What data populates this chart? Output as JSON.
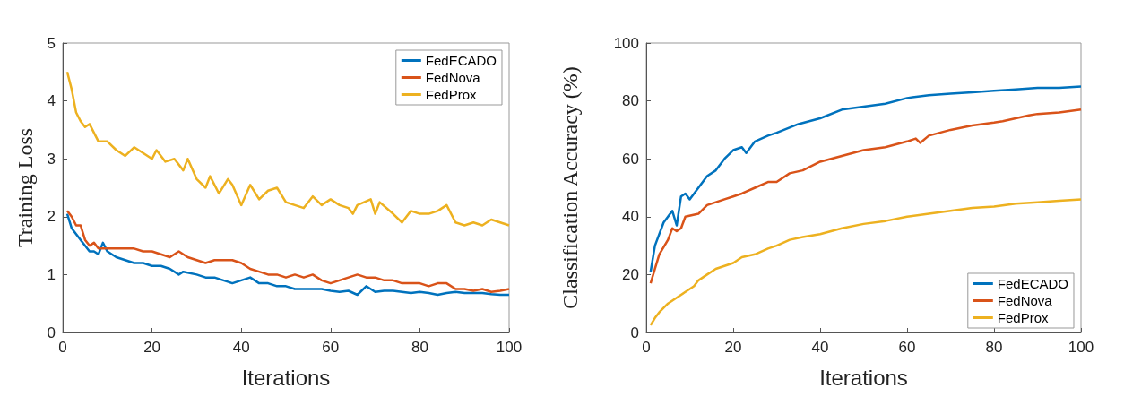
{
  "chart_data": [
    {
      "type": "line",
      "xlabel": "Iterations",
      "ylabel": "Training Loss",
      "xlim": [
        0,
        100
      ],
      "xticks": [
        0,
        20,
        40,
        60,
        80,
        100
      ],
      "ylim": [
        0,
        5
      ],
      "yticks": [
        0,
        1,
        2,
        3,
        4,
        5
      ],
      "grid": false,
      "legend": "top right",
      "marker": "none",
      "line_style": "solid",
      "series": [
        {
          "name": "FedECADO",
          "color": "#0072bd",
          "x": [
            1,
            2,
            4,
            6,
            7,
            8,
            9,
            10,
            12,
            14,
            16,
            18,
            20,
            22,
            24,
            26,
            27,
            30,
            32,
            34,
            36,
            38,
            40,
            42,
            44,
            46,
            48,
            50,
            52,
            54,
            56,
            58,
            60,
            62,
            64,
            66,
            68,
            70,
            72,
            74,
            76,
            78,
            80,
            82,
            84,
            86,
            88,
            90,
            92,
            94,
            96,
            98,
            100
          ],
          "values": [
            2.05,
            1.8,
            1.6,
            1.4,
            1.4,
            1.35,
            1.55,
            1.4,
            1.3,
            1.25,
            1.2,
            1.2,
            1.15,
            1.15,
            1.1,
            1.0,
            1.05,
            1.0,
            0.95,
            0.95,
            0.9,
            0.85,
            0.9,
            0.95,
            0.85,
            0.85,
            0.8,
            0.8,
            0.75,
            0.75,
            0.75,
            0.75,
            0.72,
            0.7,
            0.72,
            0.65,
            0.8,
            0.7,
            0.72,
            0.72,
            0.7,
            0.68,
            0.7,
            0.68,
            0.65,
            0.68,
            0.7,
            0.68,
            0.68,
            0.68,
            0.66,
            0.65,
            0.65
          ]
        },
        {
          "name": "FedNova",
          "color": "#d95319",
          "x": [
            1,
            2,
            3,
            4,
            5,
            6,
            7,
            8,
            10,
            12,
            14,
            16,
            18,
            20,
            22,
            24,
            26,
            28,
            30,
            32,
            34,
            36,
            38,
            40,
            42,
            44,
            46,
            48,
            50,
            52,
            54,
            56,
            58,
            60,
            62,
            64,
            66,
            68,
            70,
            72,
            74,
            76,
            78,
            80,
            82,
            84,
            86,
            88,
            90,
            92,
            94,
            96,
            98,
            100
          ],
          "values": [
            2.1,
            2.0,
            1.85,
            1.85,
            1.6,
            1.5,
            1.55,
            1.45,
            1.45,
            1.45,
            1.45,
            1.45,
            1.4,
            1.4,
            1.35,
            1.3,
            1.4,
            1.3,
            1.25,
            1.2,
            1.25,
            1.25,
            1.25,
            1.2,
            1.1,
            1.05,
            1.0,
            1.0,
            0.95,
            1.0,
            0.95,
            1.0,
            0.9,
            0.85,
            0.9,
            0.95,
            1.0,
            0.95,
            0.95,
            0.9,
            0.9,
            0.85,
            0.85,
            0.85,
            0.8,
            0.85,
            0.85,
            0.75,
            0.75,
            0.72,
            0.75,
            0.7,
            0.72,
            0.75
          ]
        },
        {
          "name": "FedProx",
          "color": "#edb120",
          "x": [
            1,
            2,
            3,
            4,
            5,
            6,
            7,
            8,
            10,
            12,
            14,
            16,
            18,
            20,
            21,
            23,
            25,
            27,
            28,
            30,
            32,
            33,
            35,
            37,
            38,
            40,
            42,
            44,
            46,
            48,
            50,
            52,
            54,
            56,
            58,
            60,
            62,
            64,
            65,
            66,
            69,
            70,
            71,
            74,
            76,
            78,
            80,
            82,
            84,
            86,
            88,
            90,
            92,
            94,
            96,
            98,
            100
          ],
          "values": [
            4.5,
            4.2,
            3.8,
            3.65,
            3.55,
            3.6,
            3.45,
            3.3,
            3.3,
            3.15,
            3.05,
            3.2,
            3.1,
            3.0,
            3.15,
            2.95,
            3.0,
            2.8,
            3.0,
            2.65,
            2.5,
            2.7,
            2.4,
            2.65,
            2.55,
            2.2,
            2.55,
            2.3,
            2.45,
            2.5,
            2.25,
            2.2,
            2.15,
            2.35,
            2.2,
            2.3,
            2.2,
            2.15,
            2.05,
            2.2,
            2.3,
            2.05,
            2.25,
            2.05,
            1.9,
            2.1,
            2.05,
            2.05,
            2.1,
            2.2,
            1.9,
            1.85,
            1.9,
            1.85,
            1.95,
            1.9,
            1.85
          ]
        }
      ]
    },
    {
      "type": "line",
      "xlabel": "Iterations",
      "ylabel": "Classification Accuracy (%)",
      "xlim": [
        0,
        100
      ],
      "xticks": [
        0,
        20,
        40,
        60,
        80,
        100
      ],
      "ylim": [
        0,
        100
      ],
      "yticks": [
        0,
        20,
        40,
        60,
        80,
        100
      ],
      "grid": false,
      "legend": "bottom right",
      "marker": "none",
      "line_style": "solid",
      "series": [
        {
          "name": "FedECADO",
          "color": "#0072bd",
          "x": [
            1,
            2,
            3,
            4,
            5,
            6,
            7,
            8,
            9,
            10,
            12,
            14,
            16,
            18,
            20,
            22,
            23,
            25,
            28,
            30,
            35,
            40,
            45,
            50,
            55,
            60,
            65,
            70,
            75,
            80,
            85,
            90,
            95,
            100
          ],
          "values": [
            21,
            30,
            34,
            38,
            40,
            42,
            37,
            47,
            48,
            46,
            50,
            54,
            56,
            60,
            63,
            64,
            62,
            66,
            68,
            69,
            72,
            74,
            77,
            78,
            79,
            81,
            82,
            82.5,
            83,
            83.5,
            84,
            84.5,
            84.5,
            85
          ]
        },
        {
          "name": "FedNova",
          "color": "#d95319",
          "x": [
            1,
            2,
            3,
            5,
            6,
            7,
            8,
            9,
            12,
            14,
            16,
            18,
            20,
            22,
            25,
            28,
            30,
            33,
            36,
            40,
            45,
            50,
            55,
            60,
            62,
            63,
            65,
            70,
            75,
            80,
            82,
            85,
            88,
            90,
            95,
            100
          ],
          "values": [
            17,
            22,
            27,
            32,
            36,
            35,
            36,
            40,
            41,
            44,
            45,
            46,
            47,
            48,
            50,
            52,
            52,
            55,
            56,
            59,
            61,
            63,
            64,
            66,
            67,
            65.5,
            68,
            70,
            71.5,
            72.5,
            73,
            74,
            75,
            75.5,
            76,
            77
          ]
        },
        {
          "name": "FedProx",
          "color": "#edb120",
          "x": [
            1,
            2,
            3,
            5,
            7,
            9,
            11,
            12,
            14,
            16,
            18,
            20,
            22,
            25,
            28,
            30,
            33,
            36,
            40,
            45,
            50,
            55,
            60,
            65,
            70,
            75,
            80,
            85,
            90,
            95,
            100
          ],
          "values": [
            2.5,
            5,
            7,
            10,
            12,
            14,
            16,
            18,
            20,
            22,
            23,
            24,
            26,
            27,
            29,
            30,
            32,
            33,
            34,
            36,
            37.5,
            38.5,
            40,
            41,
            42,
            43,
            43.5,
            44.5,
            45,
            45.5,
            46
          ]
        }
      ]
    }
  ]
}
